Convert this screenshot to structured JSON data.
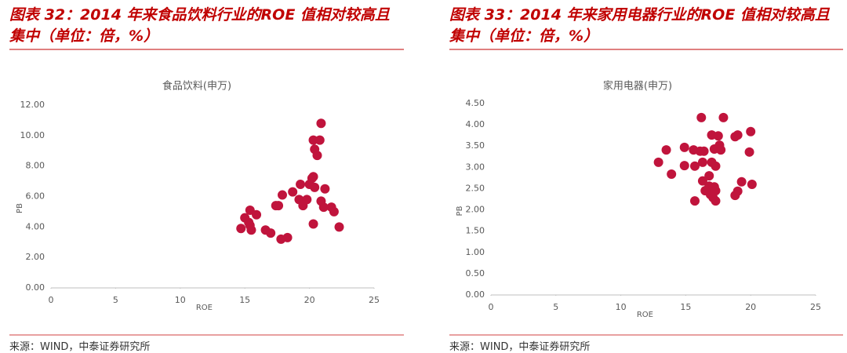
{
  "chart_data": [
    {
      "type": "scatter",
      "caption": "图表 32：2014 年来食品饮料行业的ROE 值相对较高且集中（单位：倍，%）",
      "title": "食品饮料(申万)",
      "xlabel": "ROE",
      "ylabel": "PB",
      "source": "来源：WIND，中泰证券研究所",
      "color": "#c0143c",
      "x": [
        20.9,
        20.3,
        20.8,
        20.4,
        20.6,
        20.2,
        20.3,
        19.3,
        20.0,
        20.4,
        21.2,
        18.7,
        17.9,
        19.2,
        19.8,
        20.9,
        21.1,
        19.5,
        17.6,
        17.4,
        21.7,
        21.9,
        15.4,
        15.9,
        15.0,
        15.3,
        14.7,
        15.5,
        16.6,
        17.0,
        17.8,
        18.3,
        20.3,
        22.3,
        15.4
      ],
      "values": [
        10.8,
        9.7,
        9.7,
        9.1,
        8.7,
        7.2,
        7.3,
        6.8,
        6.8,
        6.6,
        6.5,
        6.3,
        6.1,
        5.8,
        5.8,
        5.7,
        5.3,
        5.4,
        5.4,
        5.4,
        5.3,
        5.0,
        5.1,
        4.8,
        4.6,
        4.3,
        3.9,
        3.8,
        3.8,
        3.6,
        3.2,
        3.3,
        4.2,
        4.0,
        4.1
      ],
      "xlim": [
        0,
        25
      ],
      "xticks": [
        0,
        5,
        10,
        15,
        20,
        25
      ],
      "ylim": [
        0,
        12
      ],
      "yticks": [
        {
          "value": 0,
          "label": "0.00"
        },
        {
          "value": 2,
          "label": "2.00"
        },
        {
          "value": 4,
          "label": "4.00"
        },
        {
          "value": 6,
          "label": "6.00"
        },
        {
          "value": 8,
          "label": "8.00"
        },
        {
          "value": 10,
          "label": "10.00"
        },
        {
          "value": 12,
          "label": "12.00"
        }
      ],
      "grid": false
    },
    {
      "type": "scatter",
      "caption": "图表 33：2014 年来家用电器行业的ROE 值相对较高且集中（单位：倍，%）",
      "title": "家用电器(申万)",
      "xlabel": "ROE",
      "ylabel": "PB",
      "source": "来源：WIND，中泰证券研究所",
      "color": "#c0143c",
      "x": [
        16.2,
        17.9,
        20.0,
        17.0,
        17.5,
        18.8,
        19.0,
        17.6,
        14.9,
        13.5,
        15.6,
        16.1,
        16.4,
        17.2,
        17.7,
        19.9,
        12.9,
        14.9,
        15.7,
        16.3,
        17.0,
        17.3,
        13.9,
        16.8,
        16.3,
        16.8,
        17.2,
        19.3,
        20.1,
        16.5,
        16.9,
        17.3,
        19.0,
        18.8,
        17.1,
        17.3,
        15.7
      ],
      "values": [
        4.17,
        4.17,
        3.84,
        3.76,
        3.74,
        3.72,
        3.76,
        3.52,
        3.47,
        3.41,
        3.41,
        3.38,
        3.38,
        3.43,
        3.41,
        3.36,
        3.12,
        3.04,
        3.03,
        3.12,
        3.12,
        3.03,
        2.84,
        2.8,
        2.68,
        2.56,
        2.54,
        2.66,
        2.6,
        2.45,
        2.36,
        2.45,
        2.44,
        2.34,
        2.29,
        2.21,
        2.21
      ],
      "xlim": [
        0,
        25
      ],
      "xticks": [
        0,
        5,
        10,
        15,
        20,
        25
      ],
      "ylim": [
        0,
        4.5
      ],
      "yticks": [
        {
          "value": 0,
          "label": "0.00"
        },
        {
          "value": 0.5,
          "label": "0.50"
        },
        {
          "value": 1,
          "label": "1.00"
        },
        {
          "value": 1.5,
          "label": "1.50"
        },
        {
          "value": 2,
          "label": "2.00"
        },
        {
          "value": 2.5,
          "label": "2.50"
        },
        {
          "value": 3,
          "label": "3.00"
        },
        {
          "value": 3.5,
          "label": "3.50"
        },
        {
          "value": 4,
          "label": "4.00"
        },
        {
          "value": 4.5,
          "label": "4.50"
        }
      ],
      "grid": false
    }
  ]
}
